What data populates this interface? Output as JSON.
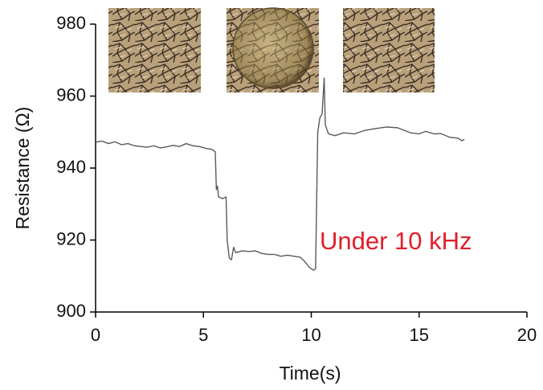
{
  "chart_data": {
    "type": "line",
    "xlabel": "Time(s)",
    "ylabel": "Resistance (Ω)",
    "annotation": "Under 10 kHz",
    "x": [
      0,
      0.3,
      0.6,
      0.9,
      1.2,
      1.5,
      1.8,
      2.1,
      2.4,
      2.7,
      3.0,
      3.3,
      3.6,
      3.9,
      4.2,
      4.5,
      4.8,
      5.1,
      5.4,
      5.55,
      5.6,
      5.65,
      5.7,
      5.9,
      6.05,
      6.1,
      6.2,
      6.3,
      6.4,
      6.5,
      6.8,
      7.1,
      7.4,
      7.7,
      8.0,
      8.3,
      8.6,
      8.9,
      9.2,
      9.5,
      9.7,
      9.9,
      10.1,
      10.2,
      10.3,
      10.4,
      10.5,
      10.6,
      10.65,
      10.8,
      11.1,
      11.5,
      12,
      12.5,
      13,
      13.5,
      14,
      14.3,
      14.6,
      15,
      15.3,
      15.7,
      16,
      16.4,
      16.8,
      17,
      17.1
    ],
    "series": [
      {
        "name": "Resistance",
        "color": "#5a5a5a",
        "values": [
          947.2,
          947.5,
          946.8,
          947.3,
          946.5,
          946.8,
          946.2,
          946.0,
          945.8,
          946.2,
          945.6,
          945.9,
          946.3,
          946.0,
          946.8,
          946.2,
          946.0,
          945.5,
          945.2,
          944.5,
          934,
          935,
          932,
          931.5,
          932,
          920,
          915,
          914.5,
          918,
          916.5,
          917,
          916.8,
          917,
          916.3,
          916,
          916,
          915.5,
          915.8,
          915.5,
          915.2,
          914,
          912.5,
          911.6,
          912,
          950,
          954,
          955,
          965,
          952,
          949.5,
          949,
          949.8,
          949.5,
          950.5,
          951,
          951.4,
          951.2,
          950.5,
          949.8,
          949.5,
          950.2,
          949.5,
          949.6,
          948.6,
          948.3,
          947.6,
          948
        ]
      }
    ],
    "xlim": [
      0,
      20
    ],
    "xticks": [
      0,
      5,
      10,
      15,
      20
    ],
    "ylim": [
      900,
      980
    ],
    "yticks": [
      900,
      920,
      940,
      960,
      980
    ],
    "grid": false
  }
}
